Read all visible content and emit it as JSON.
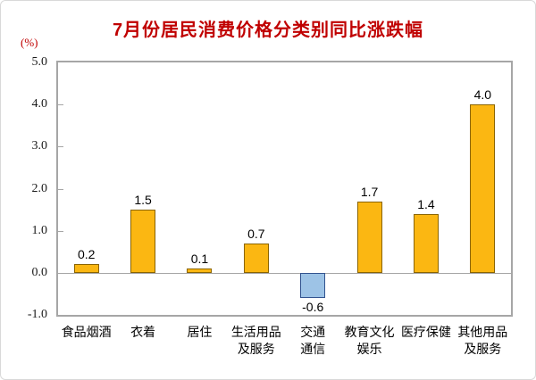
{
  "colors": {
    "title": "#C00000",
    "unit": "#C00000",
    "text": "#000000",
    "axis": "#A6A6A6",
    "bar_positive_fill": "#FBB712",
    "bar_positive_border": "#8A6400",
    "bar_negative_fill": "#9DC3E6",
    "bar_negative_border": "#31538F"
  },
  "chart_data": {
    "type": "bar",
    "title": "7月份居民消费价格分类别同比涨跌幅",
    "ylabel": "(%)",
    "categories": [
      "食品烟酒",
      "衣着",
      "居住",
      "生活用品及服务",
      "交通通信",
      "教育文化娱乐",
      "医疗保健",
      "其他用品及服务"
    ],
    "category_lines": [
      [
        "食品烟酒"
      ],
      [
        "衣着"
      ],
      [
        "居住"
      ],
      [
        "生活用品",
        "及服务"
      ],
      [
        "交通",
        "通信"
      ],
      [
        "教育文化",
        "娱乐"
      ],
      [
        "医疗保健"
      ],
      [
        "其他用品",
        "及服务"
      ]
    ],
    "values": [
      0.2,
      1.5,
      0.1,
      0.7,
      -0.6,
      1.7,
      1.4,
      4.0
    ],
    "value_labels": [
      "0.2",
      "1.5",
      "0.1",
      "0.7",
      "-0.6",
      "1.7",
      "1.4",
      "4.0"
    ],
    "ylim": [
      -1.0,
      5.0
    ],
    "yticks": [
      5.0,
      4.0,
      3.0,
      2.0,
      1.0,
      0.0,
      -1.0
    ],
    "ytick_labels": [
      "5.0",
      "4.0",
      "3.0",
      "2.0",
      "1.0",
      "0.0",
      "-1.0"
    ],
    "grid": false,
    "legend": "none"
  }
}
